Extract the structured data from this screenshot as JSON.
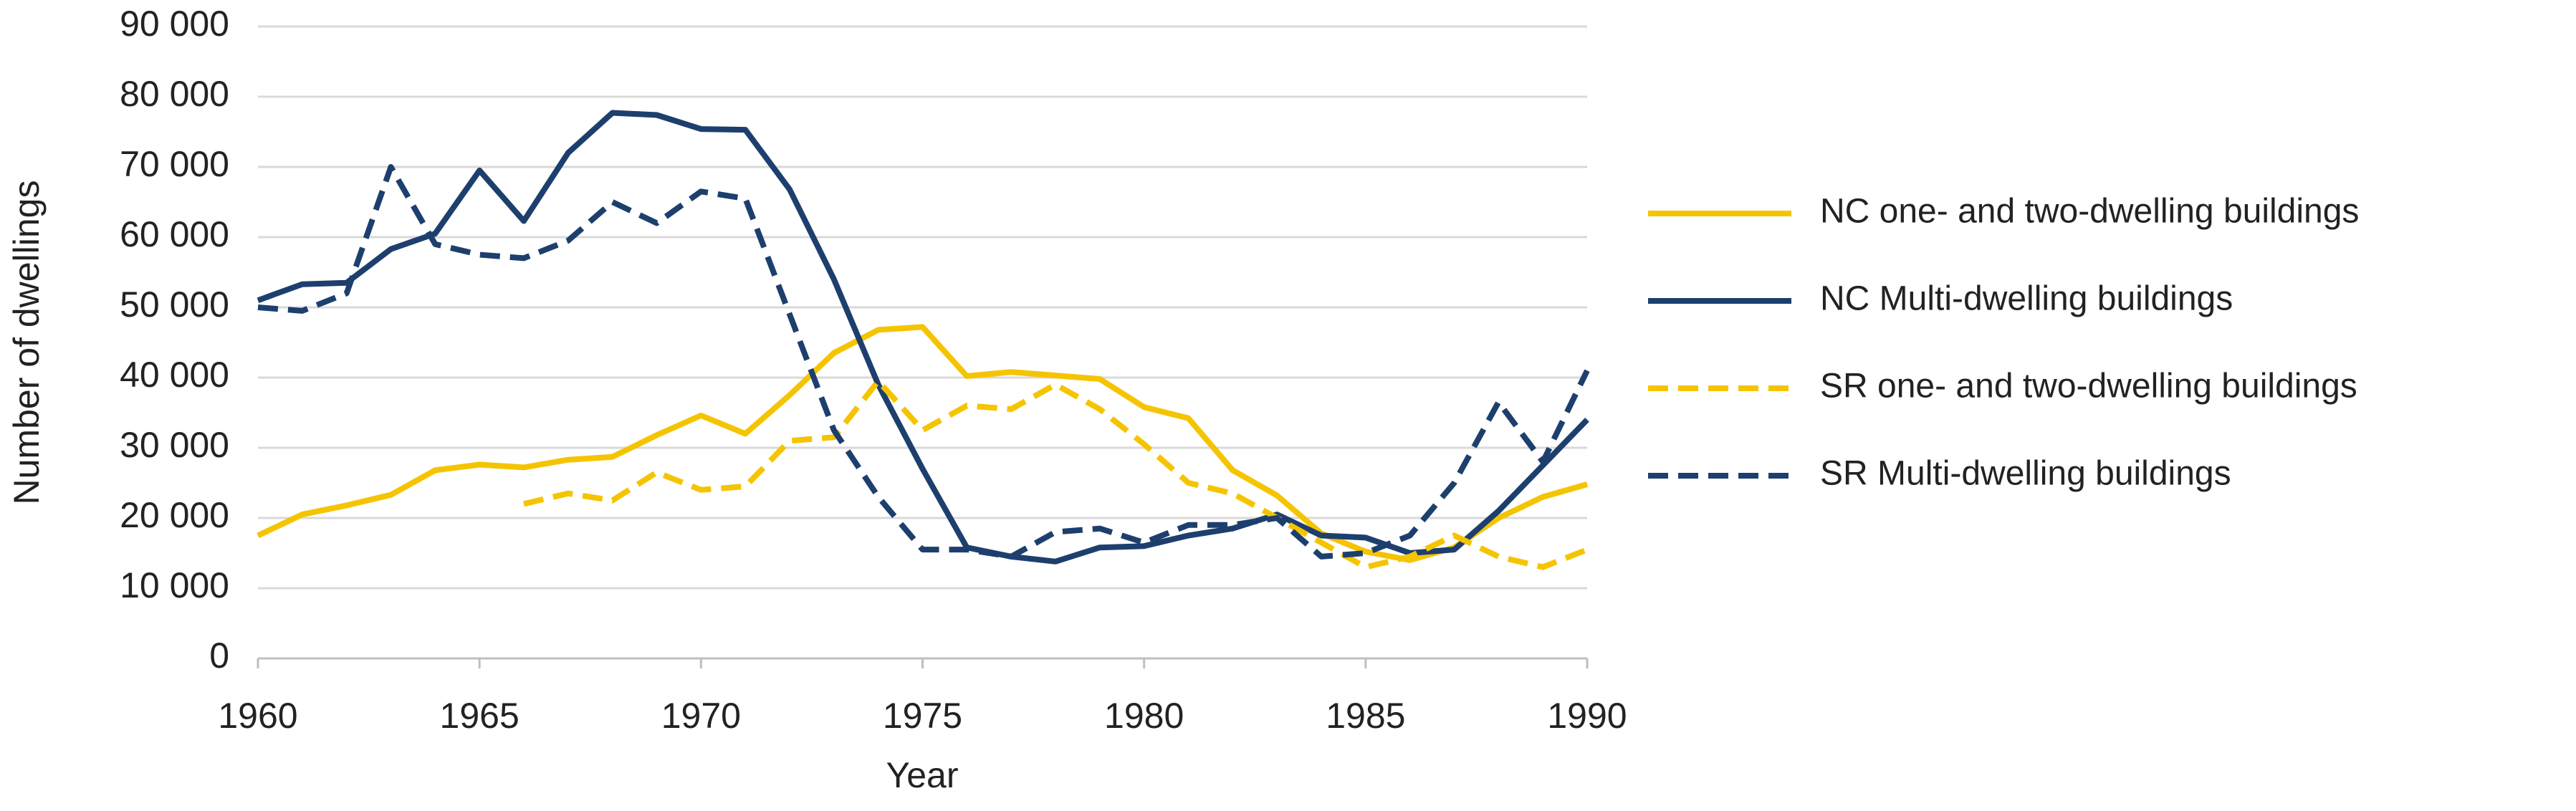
{
  "chart_data": {
    "type": "line",
    "x_label": "Year",
    "y_label": "Number of dwellings",
    "x": [
      1960,
      1961,
      1962,
      1963,
      1964,
      1965,
      1966,
      1967,
      1968,
      1969,
      1970,
      1971,
      1972,
      1973,
      1974,
      1975,
      1976,
      1977,
      1978,
      1979,
      1980,
      1981,
      1982,
      1983,
      1984,
      1985,
      1986,
      1987,
      1988,
      1989,
      1990
    ],
    "xlim": [
      1960,
      1990
    ],
    "xticks": [
      1960,
      1965,
      1970,
      1975,
      1980,
      1985,
      1990
    ],
    "ylim": [
      0,
      90000
    ],
    "yticks": [
      0,
      {
        "value": 10000,
        "label": "10 000"
      },
      {
        "value": 20000,
        "label": "20 000"
      },
      {
        "value": 30000,
        "label": "30 000"
      },
      {
        "value": 40000,
        "label": "40 000"
      },
      {
        "value": 50000,
        "label": "50 000"
      },
      {
        "value": 60000,
        "label": "60 000"
      },
      {
        "value": 70000,
        "label": "70 000"
      },
      {
        "value": 80000,
        "label": "80 000"
      },
      {
        "value": 90000,
        "label": "90 000"
      }
    ],
    "grid": true,
    "legend": "right",
    "series": [
      {
        "name": "NC one- and two-dwelling buildings",
        "color": "#f5c400",
        "dash": "solid",
        "values": [
          17500,
          20500,
          21800,
          23300,
          26800,
          27600,
          27200,
          28300,
          28700,
          31800,
          34600,
          32000,
          37500,
          43500,
          46800,
          47200,
          40200,
          40800,
          40300,
          39800,
          35800,
          34200,
          26800,
          23200,
          17800,
          15200,
          14000,
          15800,
          20000,
          23000,
          24800
        ]
      },
      {
        "name": "NC Multi-dwelling buildings",
        "color": "#1d3f6e",
        "dash": "solid",
        "values": [
          51000,
          53300,
          53500,
          58300,
          60500,
          69500,
          62300,
          72000,
          77700,
          77400,
          75400,
          75300,
          66800,
          54000,
          39000,
          27000,
          15800,
          14500,
          13800,
          15800,
          16000,
          17500,
          18500,
          20500,
          17500,
          17200,
          15000,
          15500,
          21000,
          27500,
          34000
        ]
      },
      {
        "name": "SR one- and two-dwelling buildings",
        "color": "#f5c400",
        "dash": "dashed",
        "values": [
          null,
          null,
          null,
          null,
          null,
          null,
          22000,
          23500,
          22500,
          26500,
          24000,
          24500,
          31000,
          31500,
          39500,
          32500,
          36000,
          35500,
          39000,
          35500,
          30500,
          25000,
          23500,
          20000,
          16500,
          13000,
          14500,
          17500,
          14500,
          13000,
          15500
        ]
      },
      {
        "name": "SR Multi-dwelling buildings",
        "color": "#1d3f6e",
        "dash": "dashed",
        "values": [
          50000,
          49500,
          52000,
          70000,
          59000,
          57500,
          57000,
          59500,
          65000,
          62000,
          66500,
          65500,
          49000,
          32500,
          23000,
          15500,
          15500,
          14500,
          18000,
          18500,
          16500,
          19000,
          19000,
          20000,
          14500,
          15000,
          17500,
          25000,
          36500,
          28000,
          41000
        ]
      }
    ]
  }
}
